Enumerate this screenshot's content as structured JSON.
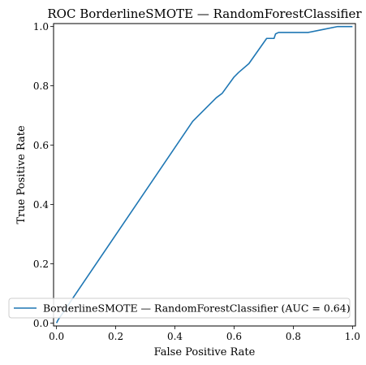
{
  "chart_data": {
    "type": "line",
    "title": "ROC BorderlineSMOTE — RandomForestClassifier",
    "xlabel": "False Positive Rate",
    "ylabel": "True Positive Rate",
    "xlim": [
      -0.01,
      1.01
    ],
    "ylim": [
      -0.01,
      1.01
    ],
    "xticks": [
      "0.0",
      "0.2",
      "0.4",
      "0.6",
      "0.8",
      "1.0"
    ],
    "yticks": [
      "0.0",
      "0.2",
      "0.4",
      "0.6",
      "0.8",
      "1.0"
    ],
    "grid": false,
    "legend_position": "lower-left",
    "series": [
      {
        "name": "BorderlineSMOTE — RandomForestClassifier (AUC = 0.64)",
        "color": "#1f77b4",
        "x": [
          0.0,
          0.005,
          0.46,
          0.54,
          0.56,
          0.6,
          0.615,
          0.65,
          0.71,
          0.735,
          0.74,
          0.75,
          0.85,
          0.9,
          0.95,
          1.0
        ],
        "y": [
          0.0,
          0.01,
          0.68,
          0.76,
          0.775,
          0.83,
          0.845,
          0.875,
          0.96,
          0.96,
          0.975,
          0.98,
          0.98,
          0.99,
          1.0,
          1.0
        ]
      }
    ]
  }
}
